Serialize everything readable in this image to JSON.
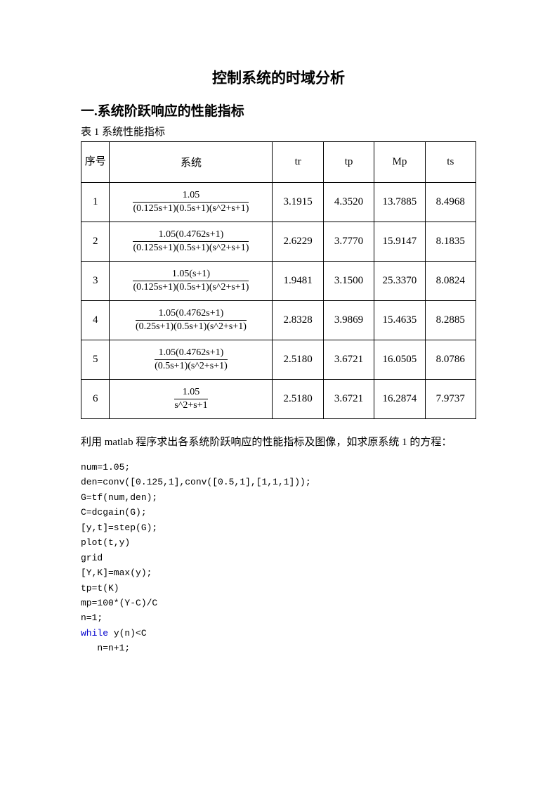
{
  "title": "控制系统的时域分析",
  "section1_heading": "一.系统阶跃响应的性能指标",
  "table_caption": "表 1 系统性能指标",
  "headers": {
    "seq": "序号",
    "sys": "系统",
    "tr": "tr",
    "tp": "tp",
    "mp": "Mp",
    "ts": "ts"
  },
  "rows": [
    {
      "seq": "1",
      "num": "1.05",
      "den": "(0.125s+1)(0.5s+1)(s^2+s+1)",
      "tr": "3.1915",
      "tp": "4.3520",
      "mp": "13.7885",
      "ts": "8.4968"
    },
    {
      "seq": "2",
      "num": "1.05(0.4762s+1)",
      "den": "(0.125s+1)(0.5s+1)(s^2+s+1)",
      "tr": "2.6229",
      "tp": "3.7770",
      "mp": "15.9147",
      "ts": "8.1835"
    },
    {
      "seq": "3",
      "num": "1.05(s+1)",
      "den": "(0.125s+1)(0.5s+1)(s^2+s+1)",
      "tr": "1.9481",
      "tp": "3.1500",
      "mp": "25.3370",
      "ts": "8.0824"
    },
    {
      "seq": "4",
      "num": "1.05(0.4762s+1)",
      "den": "(0.25s+1)(0.5s+1)(s^2+s+1)",
      "tr": "2.8328",
      "tp": "3.9869",
      "mp": "15.4635",
      "ts": "8.2885"
    },
    {
      "seq": "5",
      "num": "1.05(0.4762s+1)",
      "den": "(0.5s+1)(s^2+s+1)",
      "tr": "2.5180",
      "tp": "3.6721",
      "mp": "16.0505",
      "ts": "8.0786"
    },
    {
      "seq": "6",
      "num": "1.05",
      "den": "s^2+s+1",
      "tr": "2.5180",
      "tp": "3.6721",
      "mp": "16.2874",
      "ts": "7.9737"
    }
  ],
  "body_text": "利用 matlab 程序求出各系统阶跃响应的性能指标及图像，如求原系统 1 的方程：",
  "code": {
    "l1": "num=1.05;",
    "l2": "den=conv([0.125,1],conv([0.5,1],[1,1,1]));",
    "l3": "G=tf(num,den);",
    "l4": "C=dcgain(G);",
    "l5": "[y,t]=step(G);",
    "l6": "plot(t,y)",
    "l7": "grid",
    "l8": "[Y,K]=max(y);",
    "l9": "tp=t(K)",
    "l10": "mp=100*(Y-C)/C",
    "l11": "n=1;",
    "l12_kw": "while",
    "l12_rest": " y(n)<C",
    "l13": "   n=n+1;"
  }
}
